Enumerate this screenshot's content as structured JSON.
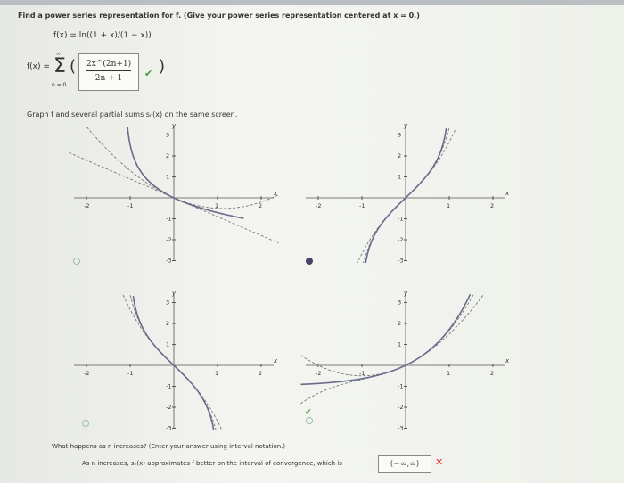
{
  "question": "Find a power series representation for f. (Give your power series representation centered at x = 0.)",
  "function": "f(x) = ln((1 + x)/(1 − x))",
  "series_prefix": "f(x) = ",
  "sigma": "Σ",
  "sigma_top": "∞",
  "sigma_bottom": "n = 0",
  "answer_numerator": "2x^(2n+1)",
  "answer_denominator": "2n + 1",
  "answer_status": "correct",
  "graph_prompt": "Graph f and several partial sums sₙ(x) on the same screen.",
  "graphs": [
    {
      "selected": false
    },
    {
      "selected": true
    },
    {
      "selected": false
    },
    {
      "selected": false,
      "marked_correct": true
    }
  ],
  "axis": {
    "x_label": "x",
    "y_label": "y",
    "x_ticks": [
      "-2",
      "-1",
      "1",
      "2"
    ],
    "y_ticks": [
      "3",
      "2",
      "1",
      "-1",
      "-2",
      "-3"
    ]
  },
  "followup": "What happens as n increases? (Enter your answer using interval notation.)",
  "followup_answer_prefix": "As n increases, sₙ(x) approximates f better on the interval of convergence, which is",
  "interval_answer": "(−∞,∞)",
  "interval_status": "incorrect",
  "colors": {
    "correct": "#4a9a3a",
    "incorrect": "#dd3333",
    "curve": "#6a6a8a"
  }
}
